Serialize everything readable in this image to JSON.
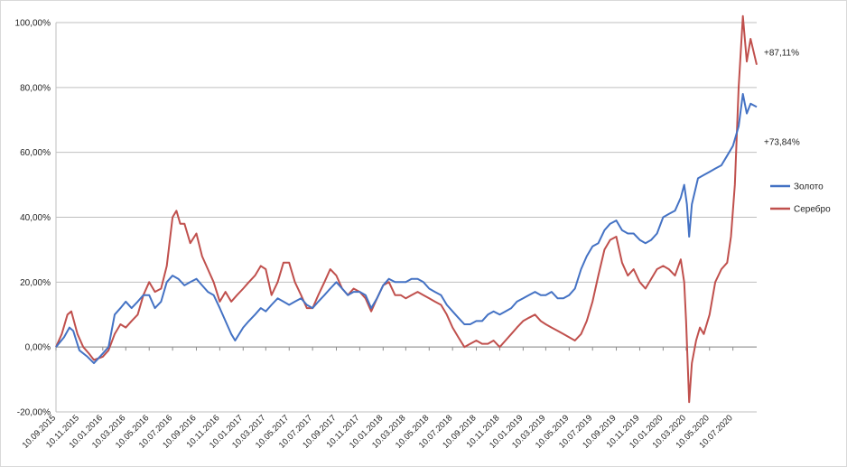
{
  "chart_data": {
    "type": "line",
    "title": "",
    "xlabel": "",
    "ylabel": "",
    "ylim": [
      -20,
      100
    ],
    "y_ticks": [
      "-20,00%",
      "0,00%",
      "20,00%",
      "40,00%",
      "60,00%",
      "80,00%",
      "100,00%"
    ],
    "y_tick_values": [
      -20,
      0,
      20,
      40,
      60,
      80,
      100
    ],
    "x_range": [
      "2015-09-10",
      "2020-09-10"
    ],
    "x_ticks": [
      "10.09.2015",
      "10.11.2015",
      "10.01.2016",
      "10.03.2016",
      "10.05.2016",
      "10.07.2016",
      "10.09.2016",
      "10.11.2016",
      "10.01.2017",
      "10.03.2017",
      "10.05.2017",
      "10.07.2017",
      "10.09.2017",
      "10.11.2017",
      "10.01.2018",
      "10.03.2018",
      "10.05.2018",
      "10.07.2018",
      "10.09.2018",
      "10.11.2018",
      "10.01.2019",
      "10.03.2019",
      "10.05.2019",
      "10.07.2019",
      "10.09.2019",
      "10.11.2019",
      "10.01.2020",
      "10.03.2020",
      "10.05.2020",
      "10.07.2020"
    ],
    "grid": "horizontal",
    "legend_position": "right",
    "series": [
      {
        "name": "Золото",
        "color": "#4472c4",
        "end_label": "+73,84%",
        "points": [
          [
            "2015-09-10",
            0
          ],
          [
            "2015-10-01",
            3
          ],
          [
            "2015-10-15",
            6
          ],
          [
            "2015-10-25",
            5
          ],
          [
            "2015-11-10",
            -1
          ],
          [
            "2015-12-01",
            -3
          ],
          [
            "2015-12-18",
            -5
          ],
          [
            "2016-01-10",
            -2
          ],
          [
            "2016-01-25",
            0
          ],
          [
            "2016-02-10",
            10
          ],
          [
            "2016-02-25",
            12
          ],
          [
            "2016-03-10",
            14
          ],
          [
            "2016-03-25",
            12
          ],
          [
            "2016-04-10",
            14
          ],
          [
            "2016-04-25",
            16
          ],
          [
            "2016-05-10",
            16
          ],
          [
            "2016-05-25",
            12
          ],
          [
            "2016-06-10",
            14
          ],
          [
            "2016-06-25",
            20
          ],
          [
            "2016-07-10",
            22
          ],
          [
            "2016-07-25",
            21
          ],
          [
            "2016-08-10",
            19
          ],
          [
            "2016-08-25",
            20
          ],
          [
            "2016-09-10",
            21
          ],
          [
            "2016-09-25",
            19
          ],
          [
            "2016-10-10",
            17
          ],
          [
            "2016-10-25",
            16
          ],
          [
            "2016-11-10",
            12
          ],
          [
            "2016-11-25",
            8
          ],
          [
            "2016-12-10",
            4
          ],
          [
            "2016-12-20",
            2
          ],
          [
            "2017-01-10",
            6
          ],
          [
            "2017-01-25",
            8
          ],
          [
            "2017-02-10",
            10
          ],
          [
            "2017-02-25",
            12
          ],
          [
            "2017-03-10",
            11
          ],
          [
            "2017-03-25",
            13
          ],
          [
            "2017-04-10",
            15
          ],
          [
            "2017-04-25",
            14
          ],
          [
            "2017-05-10",
            13
          ],
          [
            "2017-05-25",
            14
          ],
          [
            "2017-06-10",
            15
          ],
          [
            "2017-06-25",
            13
          ],
          [
            "2017-07-10",
            12
          ],
          [
            "2017-07-25",
            14
          ],
          [
            "2017-08-10",
            16
          ],
          [
            "2017-08-25",
            18
          ],
          [
            "2017-09-10",
            20
          ],
          [
            "2017-09-25",
            18
          ],
          [
            "2017-10-10",
            16
          ],
          [
            "2017-10-25",
            17
          ],
          [
            "2017-11-10",
            17
          ],
          [
            "2017-11-25",
            16
          ],
          [
            "2017-12-10",
            12
          ],
          [
            "2017-12-25",
            15
          ],
          [
            "2018-01-10",
            19
          ],
          [
            "2018-01-25",
            21
          ],
          [
            "2018-02-10",
            20
          ],
          [
            "2018-02-25",
            20
          ],
          [
            "2018-03-10",
            20
          ],
          [
            "2018-03-25",
            21
          ],
          [
            "2018-04-10",
            21
          ],
          [
            "2018-04-25",
            20
          ],
          [
            "2018-05-10",
            18
          ],
          [
            "2018-05-25",
            17
          ],
          [
            "2018-06-10",
            16
          ],
          [
            "2018-06-25",
            13
          ],
          [
            "2018-07-10",
            11
          ],
          [
            "2018-07-25",
            9
          ],
          [
            "2018-08-10",
            7
          ],
          [
            "2018-08-25",
            7
          ],
          [
            "2018-09-10",
            8
          ],
          [
            "2018-09-25",
            8
          ],
          [
            "2018-10-10",
            10
          ],
          [
            "2018-10-25",
            11
          ],
          [
            "2018-11-10",
            10
          ],
          [
            "2018-11-25",
            11
          ],
          [
            "2018-12-10",
            12
          ],
          [
            "2018-12-25",
            14
          ],
          [
            "2019-01-10",
            15
          ],
          [
            "2019-01-25",
            16
          ],
          [
            "2019-02-10",
            17
          ],
          [
            "2019-02-25",
            16
          ],
          [
            "2019-03-10",
            16
          ],
          [
            "2019-03-25",
            17
          ],
          [
            "2019-04-10",
            15
          ],
          [
            "2019-04-25",
            15
          ],
          [
            "2019-05-10",
            16
          ],
          [
            "2019-05-25",
            18
          ],
          [
            "2019-06-10",
            24
          ],
          [
            "2019-06-25",
            28
          ],
          [
            "2019-07-10",
            31
          ],
          [
            "2019-07-25",
            32
          ],
          [
            "2019-08-10",
            36
          ],
          [
            "2019-08-25",
            38
          ],
          [
            "2019-09-10",
            39
          ],
          [
            "2019-09-25",
            36
          ],
          [
            "2019-10-10",
            35
          ],
          [
            "2019-10-25",
            35
          ],
          [
            "2019-11-10",
            33
          ],
          [
            "2019-11-25",
            32
          ],
          [
            "2019-12-10",
            33
          ],
          [
            "2019-12-25",
            35
          ],
          [
            "2020-01-10",
            40
          ],
          [
            "2020-01-25",
            41
          ],
          [
            "2020-02-10",
            42
          ],
          [
            "2020-02-25",
            46
          ],
          [
            "2020-03-05",
            50
          ],
          [
            "2020-03-12",
            44
          ],
          [
            "2020-03-18",
            34
          ],
          [
            "2020-03-25",
            44
          ],
          [
            "2020-04-10",
            52
          ],
          [
            "2020-04-25",
            53
          ],
          [
            "2020-05-10",
            54
          ],
          [
            "2020-05-25",
            55
          ],
          [
            "2020-06-10",
            56
          ],
          [
            "2020-06-25",
            59
          ],
          [
            "2020-07-10",
            62
          ],
          [
            "2020-07-25",
            68
          ],
          [
            "2020-08-05",
            78
          ],
          [
            "2020-08-15",
            72
          ],
          [
            "2020-08-25",
            75
          ],
          [
            "2020-09-10",
            74
          ]
        ]
      },
      {
        "name": "Серебро",
        "color": "#c0504d",
        "end_label": "+87,11%",
        "points": [
          [
            "2015-09-10",
            0
          ],
          [
            "2015-09-25",
            4
          ],
          [
            "2015-10-10",
            10
          ],
          [
            "2015-10-20",
            11
          ],
          [
            "2015-11-05",
            4
          ],
          [
            "2015-11-20",
            0
          ],
          [
            "2015-12-05",
            -2
          ],
          [
            "2015-12-18",
            -4
          ],
          [
            "2016-01-10",
            -3
          ],
          [
            "2016-01-25",
            -1
          ],
          [
            "2016-02-10",
            4
          ],
          [
            "2016-02-25",
            7
          ],
          [
            "2016-03-10",
            6
          ],
          [
            "2016-03-25",
            8
          ],
          [
            "2016-04-10",
            10
          ],
          [
            "2016-04-25",
            16
          ],
          [
            "2016-05-10",
            20
          ],
          [
            "2016-05-25",
            17
          ],
          [
            "2016-06-10",
            18
          ],
          [
            "2016-06-25",
            25
          ],
          [
            "2016-07-10",
            40
          ],
          [
            "2016-07-20",
            42
          ],
          [
            "2016-07-30",
            38
          ],
          [
            "2016-08-10",
            38
          ],
          [
            "2016-08-25",
            32
          ],
          [
            "2016-09-10",
            35
          ],
          [
            "2016-09-25",
            28
          ],
          [
            "2016-10-10",
            24
          ],
          [
            "2016-10-25",
            20
          ],
          [
            "2016-11-10",
            14
          ],
          [
            "2016-11-25",
            17
          ],
          [
            "2016-12-10",
            14
          ],
          [
            "2016-12-25",
            16
          ],
          [
            "2017-01-10",
            18
          ],
          [
            "2017-01-25",
            20
          ],
          [
            "2017-02-10",
            22
          ],
          [
            "2017-02-25",
            25
          ],
          [
            "2017-03-10",
            24
          ],
          [
            "2017-03-25",
            16
          ],
          [
            "2017-04-10",
            20
          ],
          [
            "2017-04-25",
            26
          ],
          [
            "2017-05-10",
            26
          ],
          [
            "2017-05-25",
            20
          ],
          [
            "2017-06-10",
            16
          ],
          [
            "2017-06-25",
            12
          ],
          [
            "2017-07-10",
            12
          ],
          [
            "2017-07-25",
            16
          ],
          [
            "2017-08-10",
            20
          ],
          [
            "2017-08-25",
            24
          ],
          [
            "2017-09-10",
            22
          ],
          [
            "2017-09-25",
            18
          ],
          [
            "2017-10-10",
            16
          ],
          [
            "2017-10-25",
            18
          ],
          [
            "2017-11-10",
            17
          ],
          [
            "2017-11-25",
            15
          ],
          [
            "2017-12-10",
            11
          ],
          [
            "2017-12-25",
            15
          ],
          [
            "2018-01-10",
            19
          ],
          [
            "2018-01-25",
            20
          ],
          [
            "2018-02-10",
            16
          ],
          [
            "2018-02-25",
            16
          ],
          [
            "2018-03-10",
            15
          ],
          [
            "2018-03-25",
            16
          ],
          [
            "2018-04-10",
            17
          ],
          [
            "2018-04-25",
            16
          ],
          [
            "2018-05-10",
            15
          ],
          [
            "2018-05-25",
            14
          ],
          [
            "2018-06-10",
            13
          ],
          [
            "2018-06-25",
            10
          ],
          [
            "2018-07-10",
            6
          ],
          [
            "2018-07-25",
            3
          ],
          [
            "2018-08-10",
            0
          ],
          [
            "2018-08-25",
            1
          ],
          [
            "2018-09-10",
            2
          ],
          [
            "2018-09-25",
            1
          ],
          [
            "2018-10-10",
            1
          ],
          [
            "2018-10-25",
            2
          ],
          [
            "2018-11-10",
            0
          ],
          [
            "2018-11-25",
            2
          ],
          [
            "2018-12-10",
            4
          ],
          [
            "2018-12-25",
            6
          ],
          [
            "2019-01-10",
            8
          ],
          [
            "2019-01-25",
            9
          ],
          [
            "2019-02-10",
            10
          ],
          [
            "2019-02-25",
            8
          ],
          [
            "2019-03-10",
            7
          ],
          [
            "2019-03-25",
            6
          ],
          [
            "2019-04-10",
            5
          ],
          [
            "2019-04-25",
            4
          ],
          [
            "2019-05-10",
            3
          ],
          [
            "2019-05-25",
            2
          ],
          [
            "2019-06-10",
            4
          ],
          [
            "2019-06-25",
            8
          ],
          [
            "2019-07-10",
            14
          ],
          [
            "2019-07-25",
            22
          ],
          [
            "2019-08-10",
            30
          ],
          [
            "2019-08-25",
            33
          ],
          [
            "2019-09-10",
            34
          ],
          [
            "2019-09-25",
            26
          ],
          [
            "2019-10-10",
            22
          ],
          [
            "2019-10-25",
            24
          ],
          [
            "2019-11-10",
            20
          ],
          [
            "2019-11-25",
            18
          ],
          [
            "2019-12-10",
            21
          ],
          [
            "2019-12-25",
            24
          ],
          [
            "2020-01-10",
            25
          ],
          [
            "2020-01-25",
            24
          ],
          [
            "2020-02-10",
            22
          ],
          [
            "2020-02-25",
            27
          ],
          [
            "2020-03-05",
            20
          ],
          [
            "2020-03-10",
            8
          ],
          [
            "2020-03-18",
            -17
          ],
          [
            "2020-03-25",
            -5
          ],
          [
            "2020-04-05",
            2
          ],
          [
            "2020-04-15",
            6
          ],
          [
            "2020-04-25",
            4
          ],
          [
            "2020-05-10",
            10
          ],
          [
            "2020-05-25",
            20
          ],
          [
            "2020-06-10",
            24
          ],
          [
            "2020-06-25",
            26
          ],
          [
            "2020-07-05",
            34
          ],
          [
            "2020-07-15",
            50
          ],
          [
            "2020-07-25",
            80
          ],
          [
            "2020-08-05",
            102
          ],
          [
            "2020-08-15",
            88
          ],
          [
            "2020-08-25",
            95
          ],
          [
            "2020-09-10",
            87
          ]
        ]
      }
    ]
  }
}
